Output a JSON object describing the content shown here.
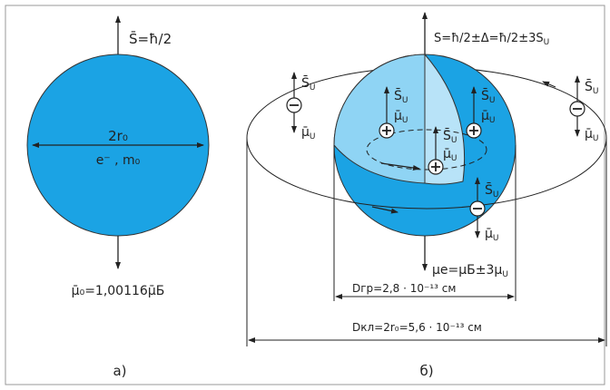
{
  "colors": {
    "sphere": "#1ba3e4",
    "sphere_cut": "#8fd4f4",
    "sphere_edge": "#333333",
    "line": "#222222"
  },
  "panel_a": {
    "spin_label": "S̄=ħ/2",
    "center_label_1": "2r₀",
    "center_label_2": "e⁻ , m₀",
    "moment_label": "μ̄₀=1,00116μ̄Б",
    "caption": "а)"
  },
  "panel_b": {
    "spin_formula": "S=ħ/2±Δ=ħ/2±3S",
    "spin_formula_sub": "U",
    "s_u": "S̄",
    "mu_u": "μ̄",
    "sub_u": "U",
    "moment_formula": "μe=μБ±3μ",
    "moment_formula_sub": "U",
    "d_gr": "Dгр=2,8 · 10⁻¹³ см",
    "d_kl": "Dкл=2r₀=5,6 · 10⁻¹³ см",
    "caption": "б)"
  }
}
